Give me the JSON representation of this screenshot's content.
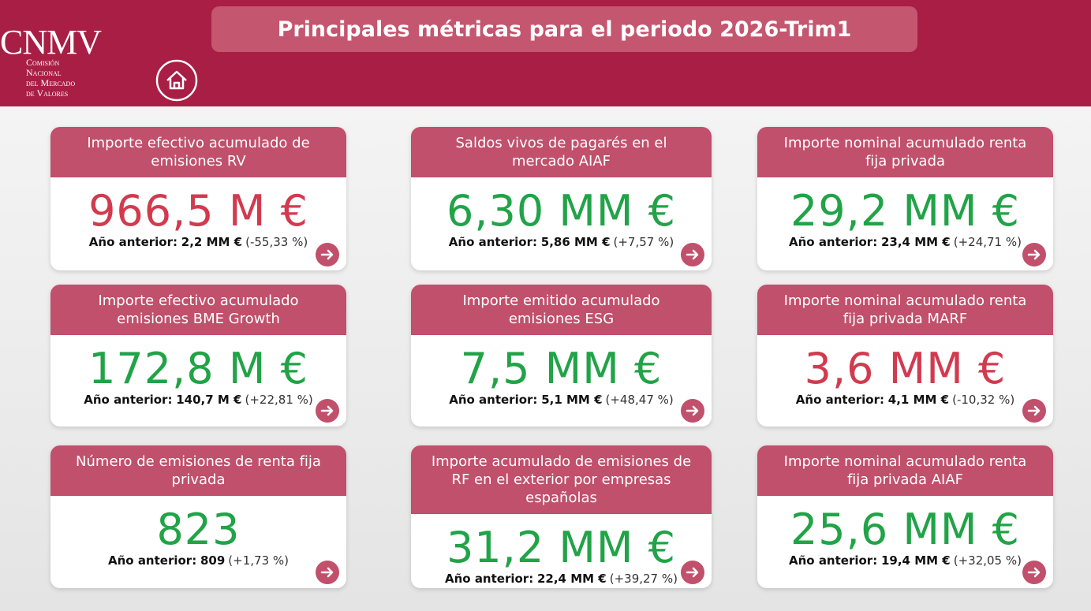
{
  "header": {
    "logo": {
      "name": "CNMV",
      "lines": [
        "Comisión",
        "Nacional",
        "del Mercado",
        "de Valores"
      ]
    },
    "title": "Principales métricas para el periodo 2026-Trim1"
  },
  "cards": [
    {
      "title": "Importe efectivo acumulado de emisiones RV",
      "value": "966,5 M €",
      "color": "#d23a4f",
      "prev_label": "Año anterior:",
      "prev_value": "2,2 MM €",
      "change": "(-55,33 %)"
    },
    {
      "title": "Saldos vivos de pagarés en el mercado AIAF",
      "value": "6,30 MM €",
      "color": "#21a347",
      "prev_label": "Año anterior:",
      "prev_value": "5,86 MM €",
      "change": "(+7,57 %)"
    },
    {
      "title": "Importe nominal acumulado renta fija privada",
      "value": "29,2 MM €",
      "color": "#21a347",
      "prev_label": "Año anterior:",
      "prev_value": "23,4 MM €",
      "change": "(+24,71 %)"
    },
    {
      "title": "Importe efectivo acumulado emisiones BME Growth",
      "value": "172,8 M €",
      "color": "#21a347",
      "prev_label": "Año anterior:",
      "prev_value": "140,7 M €",
      "change": "(+22,81 %)"
    },
    {
      "title": "Importe emitido acumulado emisiones ESG",
      "value": "7,5 MM €",
      "color": "#21a347",
      "prev_label": "Año anterior:",
      "prev_value": "5,1 MM €",
      "change": "(+48,47 %)"
    },
    {
      "title": "Importe nominal acumulado renta fija privada MARF",
      "value": "3,6 MM €",
      "color": "#d23a4f",
      "prev_label": "Año anterior:",
      "prev_value": "4,1 MM €",
      "change": "(-10,32 %)"
    },
    {
      "title": "Número de emisiones de renta fija privada",
      "value": "823",
      "color": "#21a347",
      "prev_label": "Año anterior:",
      "prev_value": "809",
      "change": "(+1,73 %)"
    },
    {
      "title": "Importe acumulado de emisiones de RF en el exterior por empresas españolas",
      "value": "31,2 MM €",
      "color": "#21a347",
      "prev_label": "Año anterior:",
      "prev_value": "22,4 MM €",
      "change": "(+39,27 %)"
    },
    {
      "title": "Importe nominal acumulado renta fija privada AIAF",
      "value": "25,6 MM €",
      "color": "#21a347",
      "prev_label": "Año anterior:",
      "prev_value": "19,4 MM €",
      "change": "(+32,05 %)"
    }
  ]
}
